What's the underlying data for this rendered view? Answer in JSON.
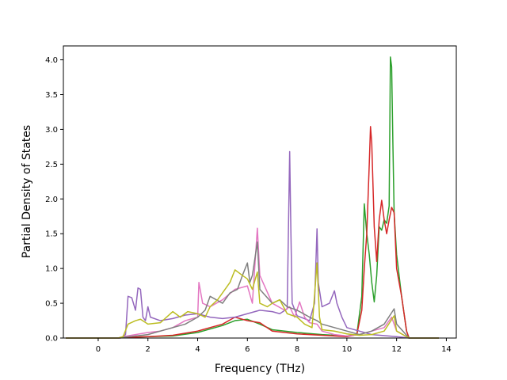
{
  "chart_data": {
    "type": "line",
    "xlabel": "Frequency (THz)",
    "ylabel": "Partial Density of States",
    "xlim": [
      -1.4,
      14.4
    ],
    "ylim": [
      0,
      4.2
    ],
    "xticks": [
      0,
      2,
      4,
      6,
      8,
      10,
      12,
      14
    ],
    "yticks": [
      0.0,
      0.5,
      1.0,
      1.5,
      2.0,
      2.5,
      3.0,
      3.5,
      4.0
    ],
    "xtick_labels": [
      "0",
      "2",
      "4",
      "6",
      "8",
      "10",
      "12",
      "14"
    ],
    "ytick_labels": [
      "0.0",
      "0.5",
      "1.0",
      "1.5",
      "2.0",
      "2.5",
      "3.0",
      "3.5",
      "4.0"
    ],
    "grid": false,
    "series": [
      {
        "color": "#2ca02c",
        "points": [
          [
            -1.3,
            0
          ],
          [
            0,
            0
          ],
          [
            0.8,
            0
          ],
          [
            1.2,
            0.01
          ],
          [
            2,
            0.02
          ],
          [
            3,
            0.03
          ],
          [
            4,
            0.08
          ],
          [
            5,
            0.18
          ],
          [
            5.5,
            0.25
          ],
          [
            6,
            0.27
          ],
          [
            6.5,
            0.2
          ],
          [
            7,
            0.12
          ],
          [
            8,
            0.08
          ],
          [
            9,
            0.05
          ],
          [
            10,
            0.03
          ],
          [
            10.4,
            0.05
          ],
          [
            10.6,
            0.6
          ],
          [
            10.7,
            1.93
          ],
          [
            10.8,
            1.5
          ],
          [
            10.9,
            1.2
          ],
          [
            11,
            0.8
          ],
          [
            11.1,
            0.52
          ],
          [
            11.2,
            0.9
          ],
          [
            11.3,
            1.6
          ],
          [
            11.4,
            1.55
          ],
          [
            11.5,
            1.7
          ],
          [
            11.6,
            1.65
          ],
          [
            11.7,
            1.9
          ],
          [
            11.75,
            4.04
          ],
          [
            11.8,
            3.9
          ],
          [
            11.85,
            2.8
          ],
          [
            11.9,
            1.8
          ],
          [
            12,
            1.2
          ],
          [
            12.2,
            0.6
          ],
          [
            12.4,
            0.1
          ],
          [
            12.5,
            0
          ],
          [
            13.7,
            0
          ]
        ]
      },
      {
        "color": "#d62728",
        "points": [
          [
            -1.3,
            0
          ],
          [
            0,
            0
          ],
          [
            0.8,
            0
          ],
          [
            1.2,
            0.01
          ],
          [
            2,
            0.02
          ],
          [
            3,
            0.04
          ],
          [
            4,
            0.1
          ],
          [
            5,
            0.2
          ],
          [
            5.5,
            0.3
          ],
          [
            6,
            0.25
          ],
          [
            6.5,
            0.22
          ],
          [
            7,
            0.1
          ],
          [
            8,
            0.06
          ],
          [
            9,
            0.04
          ],
          [
            10,
            0.02
          ],
          [
            10.4,
            0.05
          ],
          [
            10.6,
            0.4
          ],
          [
            10.7,
            1.0
          ],
          [
            10.8,
            1.5
          ],
          [
            10.9,
            2.5
          ],
          [
            10.95,
            3.04
          ],
          [
            11,
            2.8
          ],
          [
            11.1,
            1.6
          ],
          [
            11.2,
            1.1
          ],
          [
            11.3,
            1.7
          ],
          [
            11.4,
            1.98
          ],
          [
            11.5,
            1.7
          ],
          [
            11.6,
            1.5
          ],
          [
            11.7,
            1.7
          ],
          [
            11.8,
            1.88
          ],
          [
            11.9,
            1.8
          ],
          [
            12,
            1.0
          ],
          [
            12.2,
            0.6
          ],
          [
            12.4,
            0.1
          ],
          [
            12.5,
            0
          ],
          [
            13.7,
            0
          ]
        ]
      },
      {
        "color": "#9467bd",
        "points": [
          [
            -1.3,
            0
          ],
          [
            0,
            0
          ],
          [
            0.9,
            0
          ],
          [
            1.1,
            0.05
          ],
          [
            1.2,
            0.6
          ],
          [
            1.35,
            0.58
          ],
          [
            1.5,
            0.4
          ],
          [
            1.6,
            0.72
          ],
          [
            1.7,
            0.7
          ],
          [
            1.8,
            0.3
          ],
          [
            1.9,
            0.25
          ],
          [
            2,
            0.45
          ],
          [
            2.1,
            0.3
          ],
          [
            2.5,
            0.25
          ],
          [
            3,
            0.28
          ],
          [
            3.5,
            0.33
          ],
          [
            4,
            0.35
          ],
          [
            4.5,
            0.3
          ],
          [
            5,
            0.28
          ],
          [
            5.5,
            0.3
          ],
          [
            6,
            0.35
          ],
          [
            6.5,
            0.4
          ],
          [
            7,
            0.38
          ],
          [
            7.3,
            0.35
          ],
          [
            7.6,
            0.42
          ],
          [
            7.7,
            2.68
          ],
          [
            7.75,
            1.5
          ],
          [
            7.8,
            0.5
          ],
          [
            8,
            0.32
          ],
          [
            8.5,
            0.25
          ],
          [
            8.7,
            0.5
          ],
          [
            8.8,
            1.57
          ],
          [
            8.85,
            0.8
          ],
          [
            9,
            0.45
          ],
          [
            9.3,
            0.5
          ],
          [
            9.5,
            0.68
          ],
          [
            9.6,
            0.5
          ],
          [
            9.8,
            0.3
          ],
          [
            10,
            0.15
          ],
          [
            10.5,
            0.1
          ],
          [
            11,
            0.05
          ],
          [
            12,
            0.02
          ],
          [
            12.5,
            0
          ],
          [
            13.7,
            0
          ]
        ]
      },
      {
        "color": "#e377c2",
        "points": [
          [
            -1.3,
            0
          ],
          [
            0,
            0
          ],
          [
            0.8,
            0
          ],
          [
            1,
            0.02
          ],
          [
            1.5,
            0.05
          ],
          [
            2,
            0.08
          ],
          [
            2.5,
            0.1
          ],
          [
            3,
            0.15
          ],
          [
            3.5,
            0.25
          ],
          [
            4,
            0.3
          ],
          [
            4.05,
            0.8
          ],
          [
            4.2,
            0.5
          ],
          [
            4.5,
            0.45
          ],
          [
            5,
            0.55
          ],
          [
            5.5,
            0.7
          ],
          [
            6,
            0.75
          ],
          [
            6.2,
            0.5
          ],
          [
            6.4,
            1.58
          ],
          [
            6.5,
            0.9
          ],
          [
            7,
            0.5
          ],
          [
            7.5,
            0.4
          ],
          [
            7.7,
            0.45
          ],
          [
            7.9,
            0.3
          ],
          [
            8.1,
            0.52
          ],
          [
            8.3,
            0.3
          ],
          [
            8.5,
            0.22
          ],
          [
            8.8,
            0.2
          ],
          [
            9,
            0.1
          ],
          [
            9.5,
            0.05
          ],
          [
            10,
            0.03
          ],
          [
            10.5,
            0.05
          ],
          [
            11,
            0.1
          ],
          [
            11.5,
            0.15
          ],
          [
            11.8,
            0.3
          ],
          [
            12,
            0.1
          ],
          [
            12.5,
            0
          ],
          [
            13.7,
            0
          ]
        ]
      },
      {
        "color": "#7f7f7f",
        "points": [
          [
            -1.3,
            0
          ],
          [
            0,
            0
          ],
          [
            0.8,
            0
          ],
          [
            1,
            0.01
          ],
          [
            1.5,
            0.03
          ],
          [
            2,
            0.05
          ],
          [
            2.5,
            0.1
          ],
          [
            3,
            0.15
          ],
          [
            3.5,
            0.2
          ],
          [
            4,
            0.3
          ],
          [
            4.3,
            0.4
          ],
          [
            4.5,
            0.6
          ],
          [
            5,
            0.5
          ],
          [
            5.3,
            0.65
          ],
          [
            5.6,
            0.7
          ],
          [
            5.8,
            0.9
          ],
          [
            6,
            1.08
          ],
          [
            6.1,
            0.8
          ],
          [
            6.2,
            0.9
          ],
          [
            6.4,
            1.38
          ],
          [
            6.5,
            0.7
          ],
          [
            7,
            0.5
          ],
          [
            7.3,
            0.55
          ],
          [
            7.6,
            0.45
          ],
          [
            8,
            0.4
          ],
          [
            8.5,
            0.3
          ],
          [
            8.8,
            0.25
          ],
          [
            9,
            0.2
          ],
          [
            9.5,
            0.15
          ],
          [
            10,
            0.1
          ],
          [
            10.5,
            0.05
          ],
          [
            11,
            0.1
          ],
          [
            11.5,
            0.2
          ],
          [
            11.9,
            0.42
          ],
          [
            12,
            0.2
          ],
          [
            12.5,
            0
          ],
          [
            13.7,
            0
          ]
        ]
      },
      {
        "color": "#bcbd22",
        "points": [
          [
            -1.3,
            0
          ],
          [
            0,
            0
          ],
          [
            0.8,
            0
          ],
          [
            1,
            0.02
          ],
          [
            1.2,
            0.2
          ],
          [
            1.5,
            0.25
          ],
          [
            1.7,
            0.27
          ],
          [
            2,
            0.2
          ],
          [
            2.5,
            0.22
          ],
          [
            3,
            0.38
          ],
          [
            3.3,
            0.3
          ],
          [
            3.6,
            0.38
          ],
          [
            4,
            0.35
          ],
          [
            4.3,
            0.3
          ],
          [
            4.5,
            0.45
          ],
          [
            4.8,
            0.55
          ],
          [
            5,
            0.65
          ],
          [
            5.3,
            0.8
          ],
          [
            5.5,
            0.98
          ],
          [
            5.8,
            0.9
          ],
          [
            6,
            0.85
          ],
          [
            6.2,
            0.7
          ],
          [
            6.4,
            0.95
          ],
          [
            6.5,
            0.5
          ],
          [
            6.8,
            0.45
          ],
          [
            7,
            0.5
          ],
          [
            7.3,
            0.55
          ],
          [
            7.6,
            0.35
          ],
          [
            8,
            0.3
          ],
          [
            8.3,
            0.2
          ],
          [
            8.6,
            0.15
          ],
          [
            8.8,
            1.08
          ],
          [
            8.9,
            0.3
          ],
          [
            9,
            0.12
          ],
          [
            9.5,
            0.1
          ],
          [
            10,
            0.06
          ],
          [
            10.5,
            0.04
          ],
          [
            11,
            0.05
          ],
          [
            11.5,
            0.1
          ],
          [
            11.9,
            0.32
          ],
          [
            12,
            0.1
          ],
          [
            12.5,
            0
          ],
          [
            13.7,
            0
          ]
        ]
      }
    ]
  }
}
